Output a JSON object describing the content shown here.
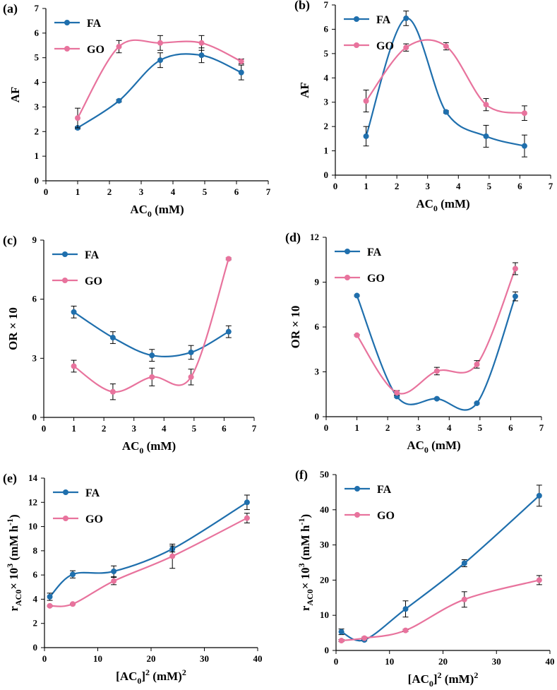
{
  "colors": {
    "FA": "#1f6fad",
    "GO": "#e8739d"
  },
  "chart_data": [
    {
      "panel": "(a)",
      "type": "line",
      "xlabel_main": "AC",
      "xlabel_sub": "0",
      "xlabel_end": " (mM)",
      "ylabel": "AF",
      "xlim": [
        0,
        7
      ],
      "ylim": [
        0,
        7
      ],
      "xticks": [
        0,
        1,
        2,
        3,
        4,
        5,
        6,
        7
      ],
      "yticks": [
        0,
        1,
        2,
        3,
        4,
        5,
        6,
        7
      ],
      "legend_position": "top-left",
      "series": [
        {
          "name": "FA",
          "x": [
            1,
            2.3,
            3.6,
            4.9,
            6.15
          ],
          "y": [
            2.15,
            3.25,
            4.9,
            5.1,
            4.4
          ],
          "err": [
            0.05,
            0.05,
            0.3,
            0.3,
            0.3
          ]
        },
        {
          "name": "GO",
          "x": [
            1,
            2.3,
            3.6,
            4.9,
            6.15
          ],
          "y": [
            2.55,
            5.45,
            5.6,
            5.6,
            4.85
          ],
          "err": [
            0.4,
            0.25,
            0.3,
            0.3,
            0.1
          ]
        }
      ]
    },
    {
      "panel": "(b)",
      "type": "line",
      "xlabel_main": "AC",
      "xlabel_sub": "0",
      "xlabel_end": " (mM)",
      "ylabel": "AF",
      "xlim": [
        0,
        7
      ],
      "ylim": [
        0,
        7
      ],
      "xticks": [
        0,
        1,
        2,
        3,
        4,
        5,
        6,
        7
      ],
      "yticks": [
        0,
        1,
        2,
        3,
        4,
        5,
        6,
        7
      ],
      "legend_position": "top-left",
      "series": [
        {
          "name": "FA",
          "x": [
            1,
            2.3,
            3.6,
            4.9,
            6.15
          ],
          "y": [
            1.6,
            6.45,
            2.6,
            1.6,
            1.2
          ],
          "err": [
            0.4,
            0.3,
            0.05,
            0.45,
            0.45
          ]
        },
        {
          "name": "GO",
          "x": [
            1,
            2.3,
            3.6,
            4.9,
            6.15
          ],
          "y": [
            3.05,
            5.25,
            5.3,
            2.9,
            2.55
          ],
          "err": [
            0.45,
            0.15,
            0.15,
            0.25,
            0.3
          ]
        }
      ]
    },
    {
      "panel": "(c)",
      "type": "line",
      "xlabel_main": "AC",
      "xlabel_sub": "0",
      "xlabel_end": " (mM)",
      "ylabel": "OR × 10",
      "xlim": [
        0,
        7
      ],
      "ylim": [
        0,
        9
      ],
      "xticks": [
        0,
        1,
        2,
        3,
        4,
        5,
        6,
        7
      ],
      "yticks": [
        0,
        3,
        6,
        9
      ],
      "legend_position": "top-left",
      "series": [
        {
          "name": "FA",
          "x": [
            1,
            2.3,
            3.6,
            4.9,
            6.15
          ],
          "y": [
            5.35,
            4.05,
            3.15,
            3.3,
            4.35
          ],
          "err": [
            0.3,
            0.3,
            0.3,
            0.35,
            0.3
          ]
        },
        {
          "name": "GO",
          "x": [
            1,
            2.3,
            3.6,
            4.9,
            6.15
          ],
          "y": [
            2.6,
            1.3,
            2.05,
            2.05,
            8.05
          ],
          "err": [
            0.3,
            0.4,
            0.45,
            0.4,
            0.05
          ]
        }
      ]
    },
    {
      "panel": "(d)",
      "type": "line",
      "xlabel_main": "AC",
      "xlabel_sub": "0",
      "xlabel_end": " (mM)",
      "ylabel": "OR × 10",
      "xlim": [
        0,
        7
      ],
      "ylim": [
        0,
        12
      ],
      "xticks": [
        0,
        1,
        2,
        3,
        4,
        5,
        6,
        7
      ],
      "yticks": [
        0,
        3,
        6,
        9,
        12
      ],
      "legend_position": "top-left",
      "series": [
        {
          "name": "FA",
          "x": [
            1,
            2.3,
            3.6,
            4.9,
            6.15
          ],
          "y": [
            8.1,
            1.35,
            1.2,
            0.9,
            8.05
          ],
          "err": [
            0.05,
            0.05,
            0.05,
            0.05,
            0.3
          ]
        },
        {
          "name": "GO",
          "x": [
            1,
            2.3,
            3.6,
            4.9,
            6.15
          ],
          "y": [
            5.45,
            1.6,
            3.05,
            3.5,
            9.9
          ],
          "err": [
            0.05,
            0.15,
            0.25,
            0.25,
            0.4
          ]
        }
      ]
    },
    {
      "panel": "(e)",
      "type": "line",
      "xlabel_pre": "[AC",
      "xlabel_sub": "0",
      "xlabel_mid": "]",
      "xlabel_sup": "2",
      "xlabel_end": " (mM)",
      "xlabel_sup2": "2",
      "ylabel_pre": "r",
      "ylabel_sub": "AC0",
      "ylabel_mid": "× 10",
      "ylabel_sup": "3",
      "ylabel_end": " (mM h",
      "ylabel_sup2": "-1",
      "ylabel_close": ")",
      "xlim": [
        0,
        40
      ],
      "ylim": [
        0,
        14
      ],
      "xticks": [
        0,
        10,
        20,
        30,
        40
      ],
      "yticks": [
        0,
        2,
        4,
        6,
        8,
        10,
        12,
        14
      ],
      "legend_position": "top-left",
      "series": [
        {
          "name": "FA",
          "x": [
            1,
            5.3,
            13,
            24,
            38
          ],
          "y": [
            4.2,
            6.05,
            6.3,
            8.15,
            12.0
          ],
          "err": [
            0.3,
            0.3,
            0.45,
            0.25,
            0.6
          ]
        },
        {
          "name": "GO",
          "x": [
            1,
            5.3,
            13,
            24,
            38
          ],
          "y": [
            3.45,
            3.6,
            5.5,
            7.55,
            10.7
          ],
          "err": [
            0.05,
            0.05,
            0.3,
            1.0,
            0.4
          ]
        }
      ]
    },
    {
      "panel": "(f)",
      "type": "line",
      "xlabel_pre": "[AC",
      "xlabel_sub": "0",
      "xlabel_mid": "]",
      "xlabel_sup": "2",
      "xlabel_end": " (mM)",
      "xlabel_sup2": "2",
      "ylabel_pre": "r",
      "ylabel_sub": "AC0",
      "ylabel_mid": "× 10",
      "ylabel_sup": "3",
      "ylabel_end": " (mM h",
      "ylabel_sup2": "-1",
      "ylabel_close": ")",
      "xlim": [
        0,
        40
      ],
      "ylim": [
        0,
        50
      ],
      "xticks": [
        0,
        10,
        20,
        30,
        40
      ],
      "yticks": [
        0,
        10,
        20,
        30,
        40,
        50
      ],
      "legend_position": "top-left",
      "series": [
        {
          "name": "FA",
          "x": [
            1,
            5.3,
            13,
            24,
            38
          ],
          "y": [
            5.3,
            3.0,
            11.8,
            24.8,
            44.0
          ],
          "err": [
            0.8,
            0.3,
            2.3,
            1.0,
            3.0
          ]
        },
        {
          "name": "GO",
          "x": [
            1,
            5.3,
            13,
            24,
            38
          ],
          "y": [
            2.8,
            3.5,
            5.7,
            14.5,
            20.0
          ],
          "err": [
            0.3,
            0.3,
            0.3,
            2.2,
            1.3
          ]
        }
      ]
    }
  ]
}
